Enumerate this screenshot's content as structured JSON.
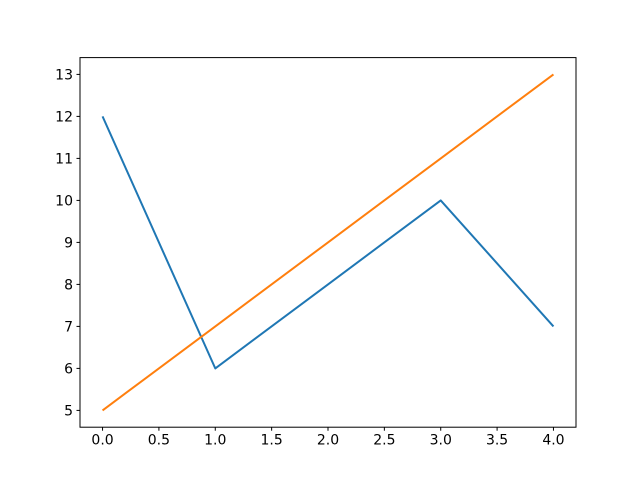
{
  "figure": {
    "background": "#ffffff",
    "plot_background": "#ffffff",
    "spine_color": "#000000",
    "tick_color": "#000000",
    "tick_label_color": "#000000"
  },
  "chart_data": {
    "type": "line",
    "title": "",
    "xlabel": "",
    "ylabel": "",
    "grid": false,
    "legend_visible": false,
    "x": [
      0,
      1,
      2,
      3,
      4
    ],
    "series": [
      {
        "name": "blue",
        "color": "#1f77b4",
        "values": [
          12,
          6,
          8,
          10,
          7
        ]
      },
      {
        "name": "orange",
        "color": "#ff7f0e",
        "values": [
          5,
          7,
          9,
          11,
          13
        ]
      }
    ],
    "xlim": [
      -0.2,
      4.2
    ],
    "ylim": [
      4.6,
      13.4
    ],
    "x_tick_values": [
      0.0,
      0.5,
      1.0,
      1.5,
      2.0,
      2.5,
      3.0,
      3.5,
      4.0
    ],
    "x_tick_labels": [
      "0.0",
      "0.5",
      "1.0",
      "1.5",
      "2.0",
      "2.5",
      "3.0",
      "3.5",
      "4.0"
    ],
    "y_tick_values": [
      5,
      6,
      7,
      8,
      9,
      10,
      11,
      12,
      13
    ],
    "y_tick_labels": [
      "5",
      "6",
      "7",
      "8",
      "9",
      "10",
      "11",
      "12",
      "13"
    ]
  }
}
